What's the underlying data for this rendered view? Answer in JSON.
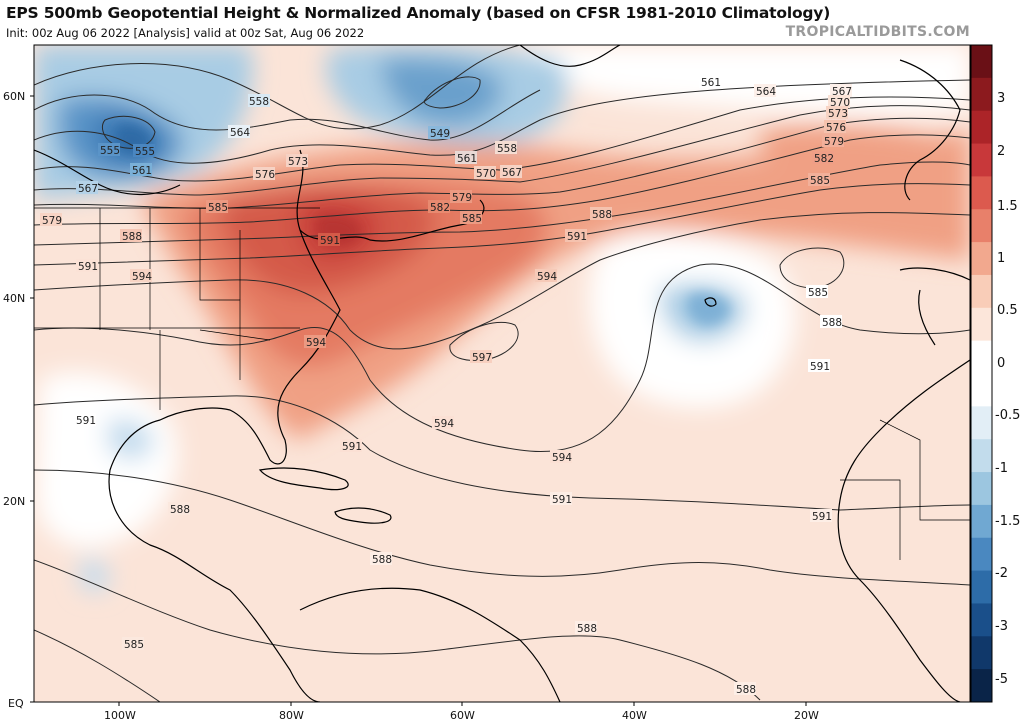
{
  "header": {
    "title": "EPS 500mb Geopotential Height & Normalized Anomaly (based on CFSR 1981-2010 Climatology)",
    "subtitle": "Init: 00z Aug 06 2022   [Analysis]   valid at 00z Sat, Aug 06 2022",
    "credit": "TROPICALTIDBITS.COM"
  },
  "map": {
    "lat_labels": [
      "60N",
      "40N",
      "20N",
      "EQ"
    ],
    "lon_labels": [
      "100W",
      "80W",
      "60W",
      "40W",
      "20W"
    ],
    "contour_labels": [
      "558",
      "564",
      "573",
      "576",
      "585",
      "588",
      "591",
      "594",
      "579",
      "567",
      "555",
      "561",
      "570",
      "549",
      "558",
      "582",
      "585",
      "591",
      "594",
      "597",
      "594",
      "591",
      "588",
      "585",
      "591",
      "561",
      "564",
      "567",
      "570",
      "573",
      "576",
      "579",
      "582",
      "585",
      "588",
      "591",
      "594",
      "588",
      "594",
      "591",
      "585",
      "588",
      "591",
      "588",
      "588",
      "555",
      "561",
      "567",
      "579",
      "591"
    ]
  },
  "colorbar": {
    "ticks": [
      "3",
      "2",
      "1.5",
      "1",
      "0.5",
      "0",
      "-0.5",
      "-1",
      "-1.5",
      "-2",
      "-3",
      "-5"
    ],
    "colors": [
      "#6a1016",
      "#8c1a1e",
      "#ac2428",
      "#c8383a",
      "#dc5a4e",
      "#e8806a",
      "#f2a88e",
      "#f9cdb8",
      "#fce6da",
      "#ffffff",
      "#ffffff",
      "#e2eef6",
      "#c2dcec",
      "#9cc6e0",
      "#70a8d2",
      "#4a88c0",
      "#2d6ca8",
      "#1a4f8a",
      "#10386a",
      "#0a2448"
    ]
  }
}
